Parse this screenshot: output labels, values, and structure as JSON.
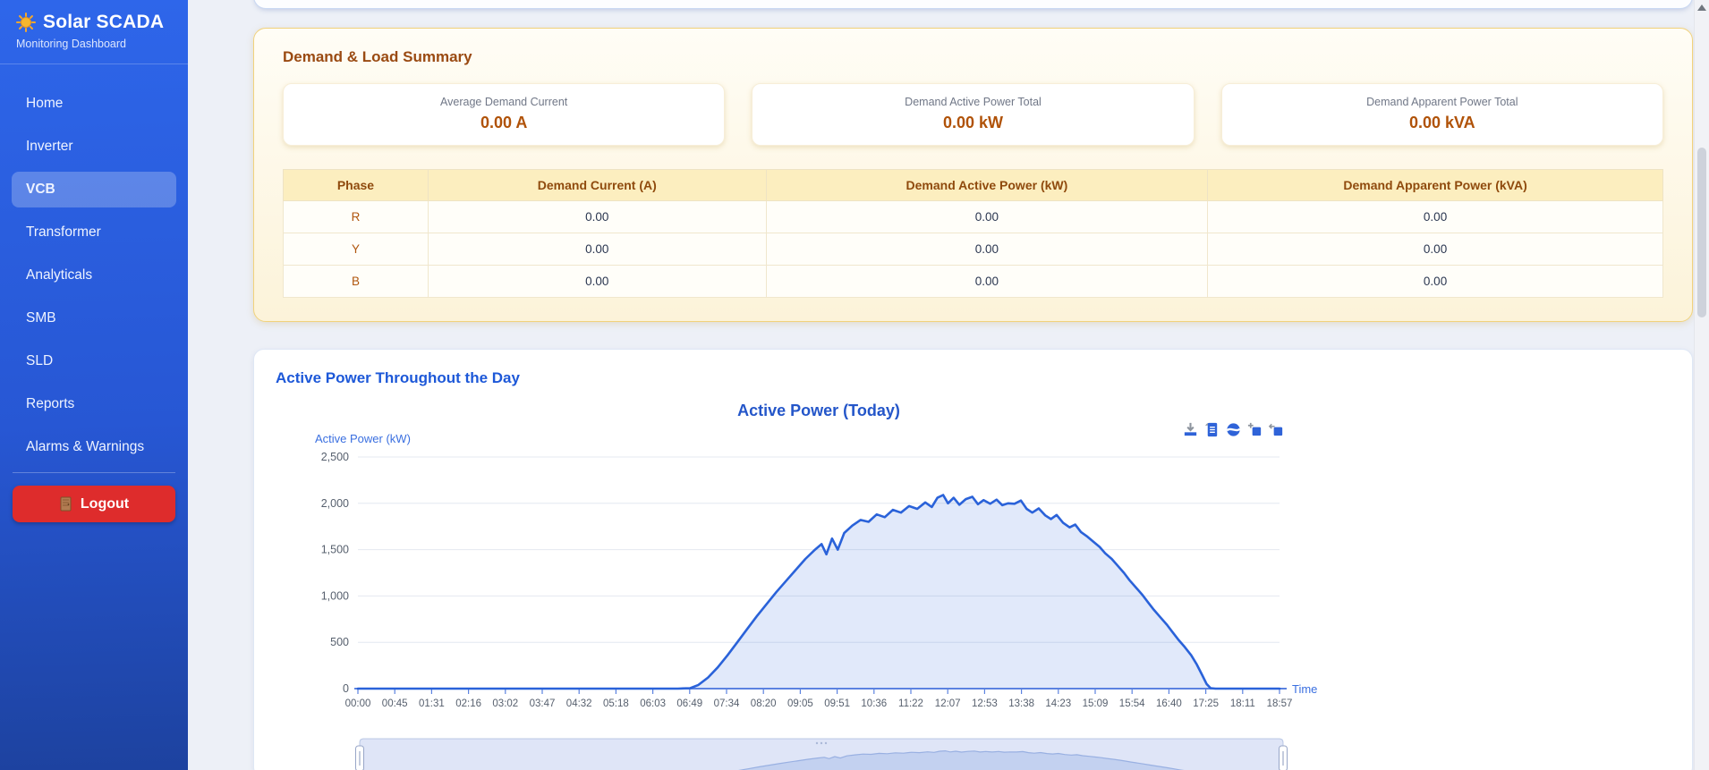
{
  "sidebar": {
    "brand": {
      "title": "Solar SCADA",
      "subtitle": "Monitoring Dashboard"
    },
    "items": [
      {
        "label": "Home"
      },
      {
        "label": "Inverter"
      },
      {
        "label": "VCB"
      },
      {
        "label": "Transformer"
      },
      {
        "label": "Analyticals"
      },
      {
        "label": "SMB"
      },
      {
        "label": "SLD"
      },
      {
        "label": "Reports"
      },
      {
        "label": "Alarms & Warnings"
      }
    ],
    "active_item": "VCB",
    "logout_label": "Logout"
  },
  "demand_summary": {
    "title": "Demand & Load Summary",
    "stats": [
      {
        "label": "Average Demand Current",
        "value": "0.00 A"
      },
      {
        "label": "Demand Active Power Total",
        "value": "0.00 kW"
      },
      {
        "label": "Demand Apparent Power Total",
        "value": "0.00 kVA"
      }
    ],
    "table": {
      "headers": [
        "Phase",
        "Demand Current (A)",
        "Demand Active Power (kW)",
        "Demand Apparent Power (kVA)"
      ],
      "rows": [
        {
          "phase": "R",
          "current": "0.00",
          "active_power": "0.00",
          "apparent_power": "0.00"
        },
        {
          "phase": "Y",
          "current": "0.00",
          "active_power": "0.00",
          "apparent_power": "0.00"
        },
        {
          "phase": "B",
          "current": "0.00",
          "active_power": "0.00",
          "apparent_power": "0.00"
        }
      ]
    }
  },
  "chart_card": {
    "title": "Active Power Throughout the Day"
  },
  "chart_data": {
    "type": "area",
    "title": "Active Power (Today)",
    "ylabel": "Active Power (kW)",
    "xlabel": "Time",
    "ylim": [
      0,
      2500
    ],
    "y_ticks": [
      0,
      500,
      1000,
      1500,
      2000,
      2500
    ],
    "y_tick_labels": [
      "0",
      "500",
      "1,000",
      "1,500",
      "2,000",
      "2,500"
    ],
    "x_tick_labels": [
      "00:00",
      "00:45",
      "01:31",
      "02:16",
      "03:02",
      "03:47",
      "04:32",
      "05:18",
      "06:03",
      "06:49",
      "07:34",
      "08:20",
      "09:05",
      "09:51",
      "10:36",
      "11:22",
      "12:07",
      "12:53",
      "13:38",
      "14:23",
      "15:09",
      "15:54",
      "16:40",
      "17:25",
      "18:11",
      "18:57"
    ],
    "x_total_minutes": 1137,
    "grid": true,
    "legend": "none",
    "toolbox": [
      "save-image",
      "data-view",
      "restore",
      "zoom-in",
      "zoom-reset"
    ],
    "datazoom_slider": true,
    "line_color": "#2a62d9",
    "area_color": "rgba(42,98,217,0.14)",
    "axis_color": "#5b82e0",
    "grid_color": "#e4e8f0",
    "label_color": "#57606e",
    "name_color": "#3a6fe0",
    "title_color": "#2456c9",
    "points": [
      [
        0,
        0
      ],
      [
        60,
        0
      ],
      [
        120,
        0
      ],
      [
        180,
        0
      ],
      [
        240,
        0
      ],
      [
        300,
        0
      ],
      [
        360,
        0
      ],
      [
        395,
        0
      ],
      [
        410,
        5
      ],
      [
        420,
        40
      ],
      [
        432,
        120
      ],
      [
        444,
        230
      ],
      [
        456,
        360
      ],
      [
        468,
        500
      ],
      [
        480,
        640
      ],
      [
        492,
        780
      ],
      [
        504,
        910
      ],
      [
        516,
        1040
      ],
      [
        528,
        1160
      ],
      [
        540,
        1280
      ],
      [
        552,
        1400
      ],
      [
        564,
        1500
      ],
      [
        572,
        1560
      ],
      [
        578,
        1450
      ],
      [
        585,
        1620
      ],
      [
        592,
        1500
      ],
      [
        600,
        1680
      ],
      [
        610,
        1760
      ],
      [
        620,
        1820
      ],
      [
        630,
        1800
      ],
      [
        640,
        1880
      ],
      [
        650,
        1850
      ],
      [
        660,
        1930
      ],
      [
        670,
        1900
      ],
      [
        680,
        1970
      ],
      [
        690,
        1940
      ],
      [
        700,
        2010
      ],
      [
        708,
        1960
      ],
      [
        715,
        2060
      ],
      [
        722,
        2090
      ],
      [
        728,
        2000
      ],
      [
        735,
        2060
      ],
      [
        742,
        1985
      ],
      [
        750,
        2045
      ],
      [
        758,
        2070
      ],
      [
        765,
        1990
      ],
      [
        772,
        2035
      ],
      [
        780,
        1995
      ],
      [
        788,
        2040
      ],
      [
        795,
        1980
      ],
      [
        802,
        2000
      ],
      [
        810,
        1995
      ],
      [
        818,
        2030
      ],
      [
        825,
        1940
      ],
      [
        832,
        1900
      ],
      [
        840,
        1945
      ],
      [
        848,
        1870
      ],
      [
        855,
        1830
      ],
      [
        862,
        1875
      ],
      [
        870,
        1790
      ],
      [
        878,
        1740
      ],
      [
        885,
        1770
      ],
      [
        892,
        1690
      ],
      [
        900,
        1640
      ],
      [
        908,
        1580
      ],
      [
        915,
        1530
      ],
      [
        922,
        1460
      ],
      [
        930,
        1400
      ],
      [
        938,
        1320
      ],
      [
        945,
        1250
      ],
      [
        952,
        1170
      ],
      [
        960,
        1090
      ],
      [
        968,
        1010
      ],
      [
        975,
        930
      ],
      [
        982,
        850
      ],
      [
        990,
        770
      ],
      [
        998,
        690
      ],
      [
        1005,
        610
      ],
      [
        1012,
        530
      ],
      [
        1020,
        450
      ],
      [
        1028,
        360
      ],
      [
        1035,
        260
      ],
      [
        1042,
        140
      ],
      [
        1047,
        50
      ],
      [
        1052,
        5
      ],
      [
        1058,
        0
      ],
      [
        1080,
        0
      ],
      [
        1110,
        0
      ],
      [
        1137,
        0
      ]
    ]
  }
}
